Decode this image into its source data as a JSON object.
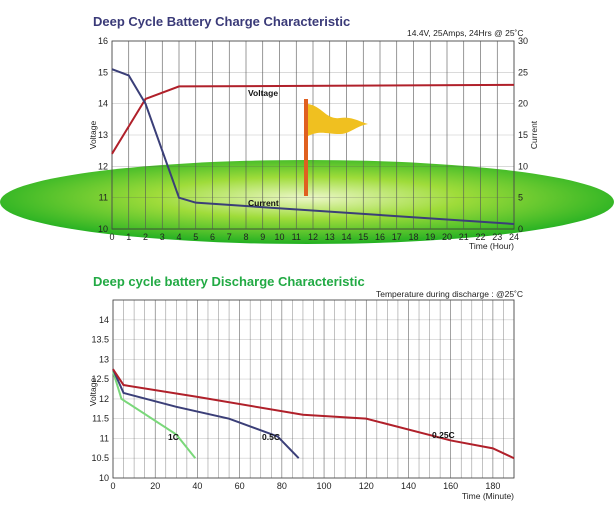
{
  "colors": {
    "charge_title": "#3a3a78",
    "discharge_title": "#22aa44",
    "voltage_line": "#b0202a",
    "current_line": "#3b3f78",
    "line_1c": "#7ad87a",
    "line_05c": "#3b3f78",
    "line_025c": "#b0202a",
    "ellipse": "#22b022",
    "flag": "#f0c020",
    "pole": "#e06020"
  },
  "chart_data": [
    {
      "type": "line",
      "title": "Deep Cycle Battery Charge Characteristic",
      "note": "14.4V, 25Amps, 24Hrs @ 25˚C",
      "xlabel": "Time (Hour)",
      "ylabel": "Voltage",
      "ylabel_right": "Current",
      "xlim": [
        0,
        24
      ],
      "ylim": [
        10,
        16
      ],
      "ylim_right": [
        0,
        30
      ],
      "xticks": [
        "0",
        "1",
        "2",
        "3",
        "4",
        "5",
        "6",
        "7",
        "8",
        "9",
        "10",
        "11",
        "12",
        "13",
        "14",
        "15",
        "16",
        "17",
        "18",
        "19",
        "20",
        "21",
        "22",
        "23",
        "24"
      ],
      "yticks": [
        "10",
        "11",
        "12",
        "13",
        "14",
        "15",
        "16"
      ],
      "yticks_right": [
        "0",
        "5",
        "10",
        "15",
        "20",
        "25",
        "30"
      ],
      "grid": true,
      "series": [
        {
          "name": "Voltage",
          "axis": "left",
          "x": [
            0,
            2,
            4,
            24
          ],
          "y": [
            12.4,
            14.15,
            14.55,
            14.6
          ]
        },
        {
          "name": "Current",
          "axis": "right",
          "x": [
            0,
            1,
            2,
            4,
            5,
            24
          ],
          "y": [
            25.5,
            24.5,
            20,
            5,
            4.2,
            0.8
          ]
        }
      ]
    },
    {
      "type": "line",
      "title": "Deep cycle battery Discharge Characteristic",
      "note": "Temperature during discharge : @25˚C",
      "xlabel": "Time (Minute)",
      "ylabel": "Voltage",
      "xlim": [
        0,
        190
      ],
      "ylim": [
        10,
        14.5
      ],
      "xticks": [
        "0",
        "20",
        "40",
        "60",
        "80",
        "100",
        "120",
        "140",
        "160",
        "180"
      ],
      "xtick_values": [
        0,
        20,
        40,
        60,
        80,
        100,
        120,
        140,
        160,
        180
      ],
      "yticks": [
        "10",
        "10.5",
        "11",
        "11.5",
        "12",
        "12.5",
        "13",
        "13.5",
        "14"
      ],
      "ytick_values": [
        10,
        10.5,
        11,
        11.5,
        12,
        12.5,
        13,
        13.5,
        14
      ],
      "grid": true,
      "series": [
        {
          "name": "1C",
          "x": [
            0,
            4,
            30,
            39
          ],
          "y": [
            12.7,
            12.0,
            11.1,
            10.5
          ]
        },
        {
          "name": "0.5C",
          "x": [
            0,
            5,
            30,
            55,
            78,
            88
          ],
          "y": [
            12.75,
            12.15,
            11.8,
            11.5,
            11.05,
            10.5
          ]
        },
        {
          "name": "0.25C",
          "x": [
            0,
            5,
            40,
            90,
            120,
            160,
            180,
            190
          ],
          "y": [
            12.75,
            12.35,
            12.05,
            11.6,
            11.5,
            10.95,
            10.75,
            10.5
          ]
        }
      ]
    }
  ]
}
